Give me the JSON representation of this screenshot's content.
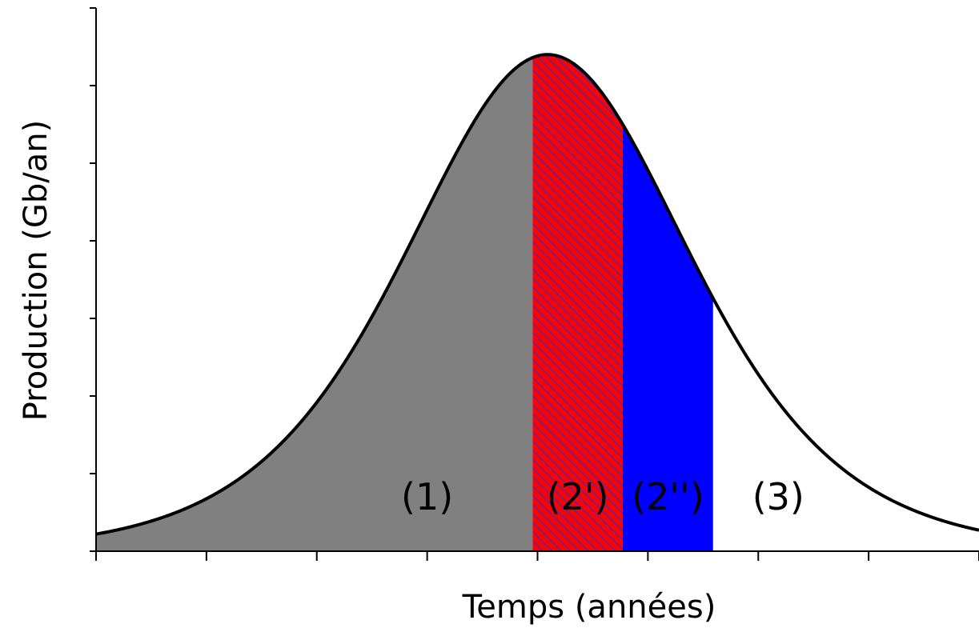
{
  "chart_data": {
    "type": "area",
    "title": "",
    "xlabel": "Temps (années)",
    "ylabel": "Production (Gb/an)",
    "xlim": [
      0,
      88
    ],
    "ylim": [
      0,
      7
    ],
    "x_ticks": 9,
    "y_ticks": 8,
    "tick_labels_shown": false,
    "grid": false,
    "curve": {
      "shape": "bell",
      "peak_x": 45,
      "peak_y": 6.4,
      "width": 9.5
    },
    "regions": [
      {
        "label": "(1)",
        "x_start": 0,
        "x_end": 43.5,
        "fill": "#808080",
        "pattern": "none",
        "label_x": 33
      },
      {
        "label": "(2')",
        "x_start": 43.5,
        "x_end": 52.5,
        "fill": "#ff0000",
        "pattern": "hatch",
        "hatch_color": "#3333cc",
        "label_x": 48
      },
      {
        "label": "(2'')",
        "x_start": 52.5,
        "x_end": 61.5,
        "fill": "#0000ff",
        "pattern": "none",
        "label_x": 57
      },
      {
        "label": "(3)",
        "x_start": 61.5,
        "x_end": 88,
        "fill": "#ffffff",
        "pattern": "none",
        "label_x": 68
      }
    ],
    "region_label_y": 0.7,
    "line_color": "#000000"
  }
}
